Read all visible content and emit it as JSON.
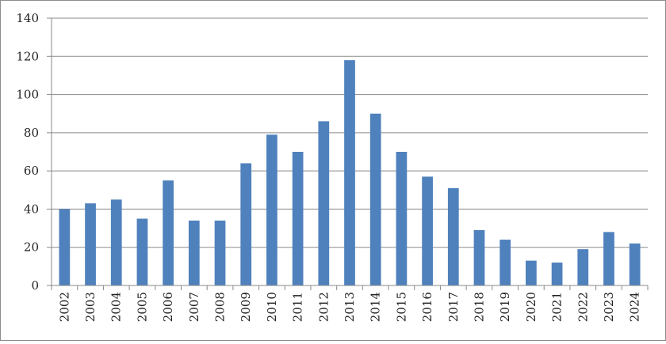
{
  "chart_data": {
    "type": "bar",
    "title": "",
    "xlabel": "",
    "ylabel": "",
    "categories": [
      "2002",
      "2003",
      "2004",
      "2005",
      "2006",
      "2007",
      "2008",
      "2009",
      "2010",
      "2011",
      "2012",
      "2013",
      "2014",
      "2015",
      "2016",
      "2017",
      "2018",
      "2019",
      "2020",
      "2021",
      "2022",
      "2023",
      "2024"
    ],
    "values": [
      40,
      43,
      45,
      35,
      55,
      34,
      34,
      64,
      79,
      70,
      86,
      118,
      90,
      70,
      57,
      51,
      29,
      24,
      13,
      12,
      19,
      28,
      22
    ],
    "ylim": [
      0,
      140
    ],
    "yticks": [
      0,
      20,
      40,
      60,
      80,
      100,
      120,
      140
    ],
    "grid": true,
    "legend": "none",
    "colors": {
      "bar": "#4f81bd",
      "grid": "#8a8a8a",
      "axis": "#8a8a8a"
    }
  }
}
